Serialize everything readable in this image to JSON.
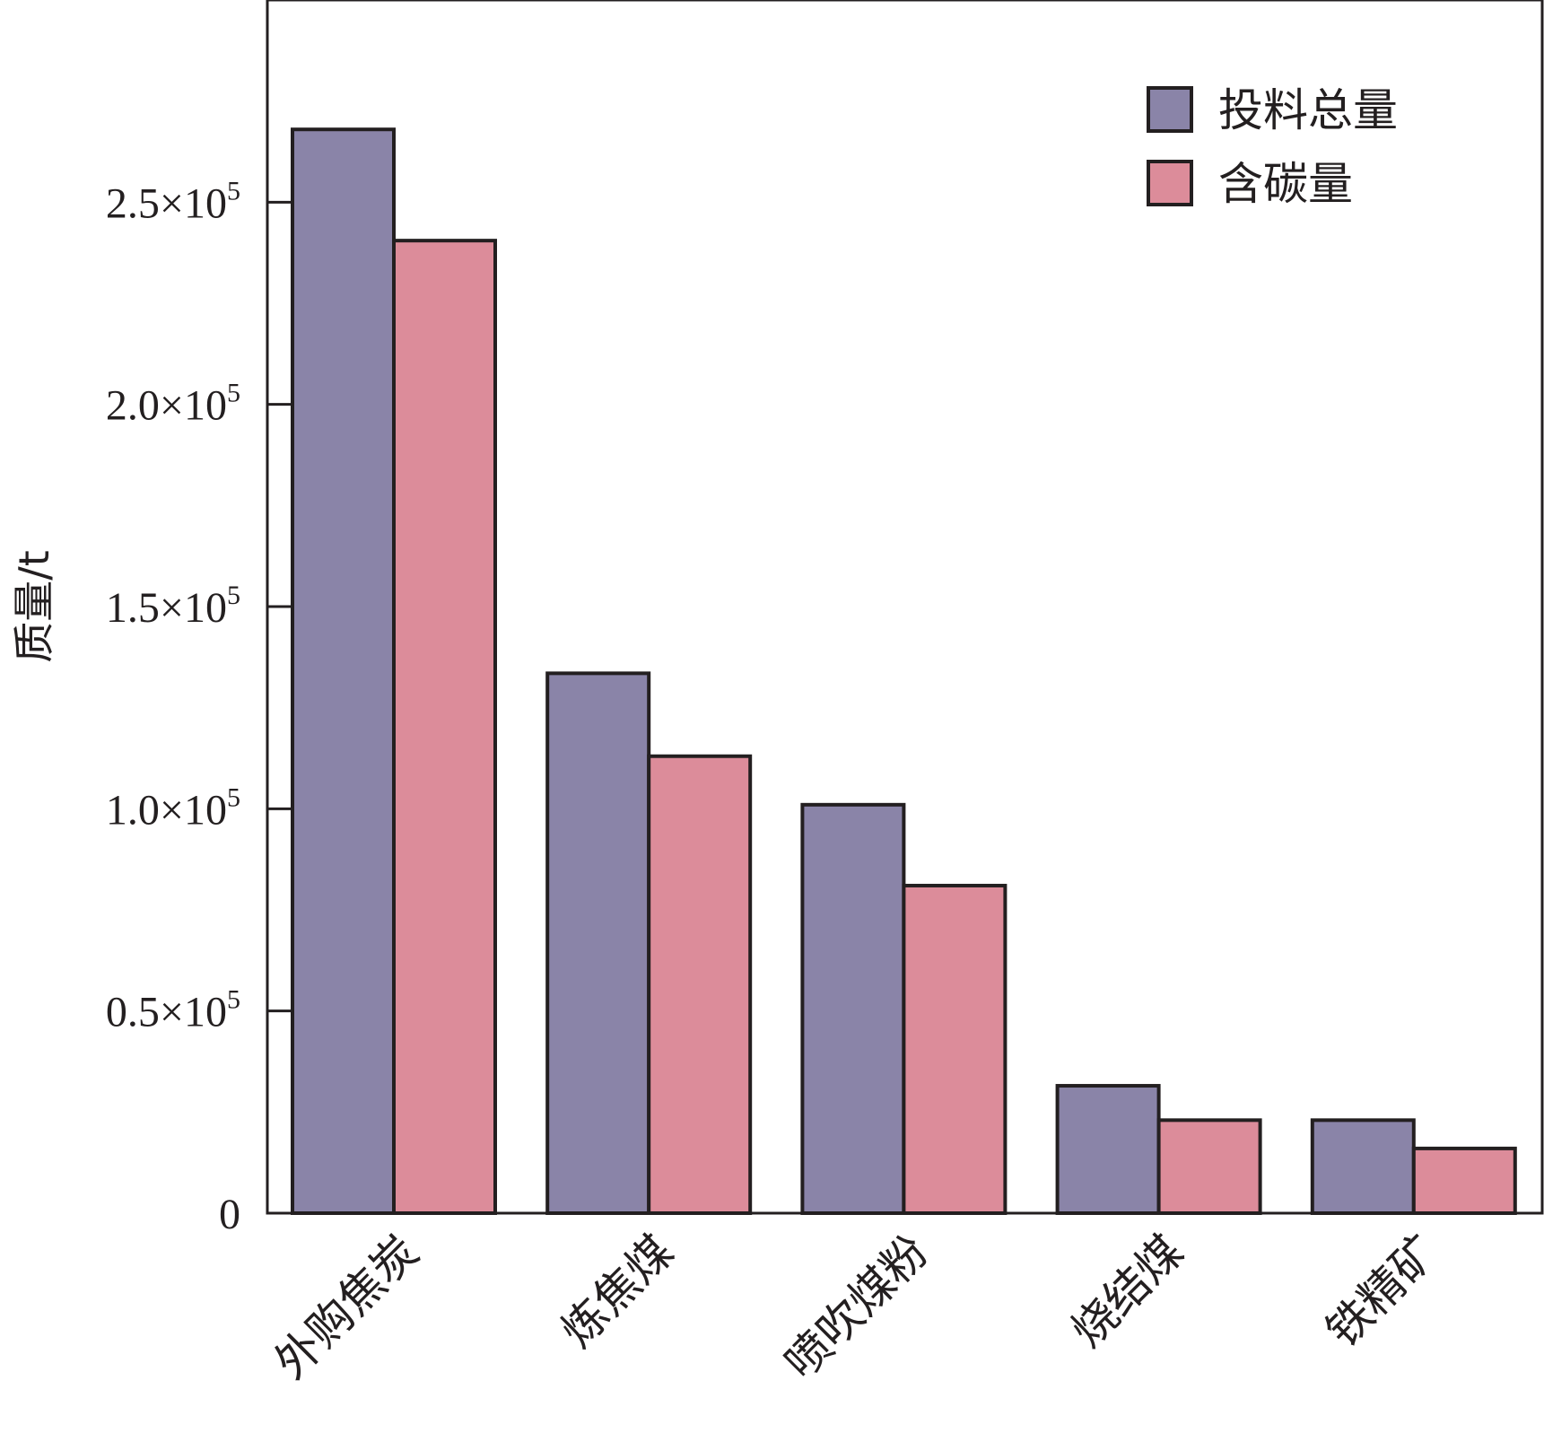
{
  "chart_data": {
    "type": "bar",
    "categories": [
      "外购焦炭",
      "炼焦煤",
      "喷吹煤粉",
      "烧结煤",
      "铁精矿"
    ],
    "series": [
      {
        "name": "投料总量",
        "color": "#8a84a8",
        "values": [
          268000,
          133500,
          101000,
          31500,
          23000
        ]
      },
      {
        "name": "含碳量",
        "color": "#dc8c9a",
        "values": [
          240500,
          113000,
          81000,
          23000,
          16000
        ]
      }
    ],
    "xlabel": "",
    "ylabel": "质量/t",
    "ylim": [
      0,
      300000
    ],
    "yticks": [
      {
        "value": 0,
        "mantissa": "0",
        "exponent": ""
      },
      {
        "value": 50000,
        "mantissa": "0.5×10",
        "exponent": "5"
      },
      {
        "value": 100000,
        "mantissa": "1.0×10",
        "exponent": "5"
      },
      {
        "value": 150000,
        "mantissa": "1.5×10",
        "exponent": "5"
      },
      {
        "value": 200000,
        "mantissa": "2.0×10",
        "exponent": "5"
      },
      {
        "value": 250000,
        "mantissa": "2.5×10",
        "exponent": "5"
      }
    ],
    "legend_position": "top-right",
    "grid": false,
    "frame_color": "#231f20"
  }
}
